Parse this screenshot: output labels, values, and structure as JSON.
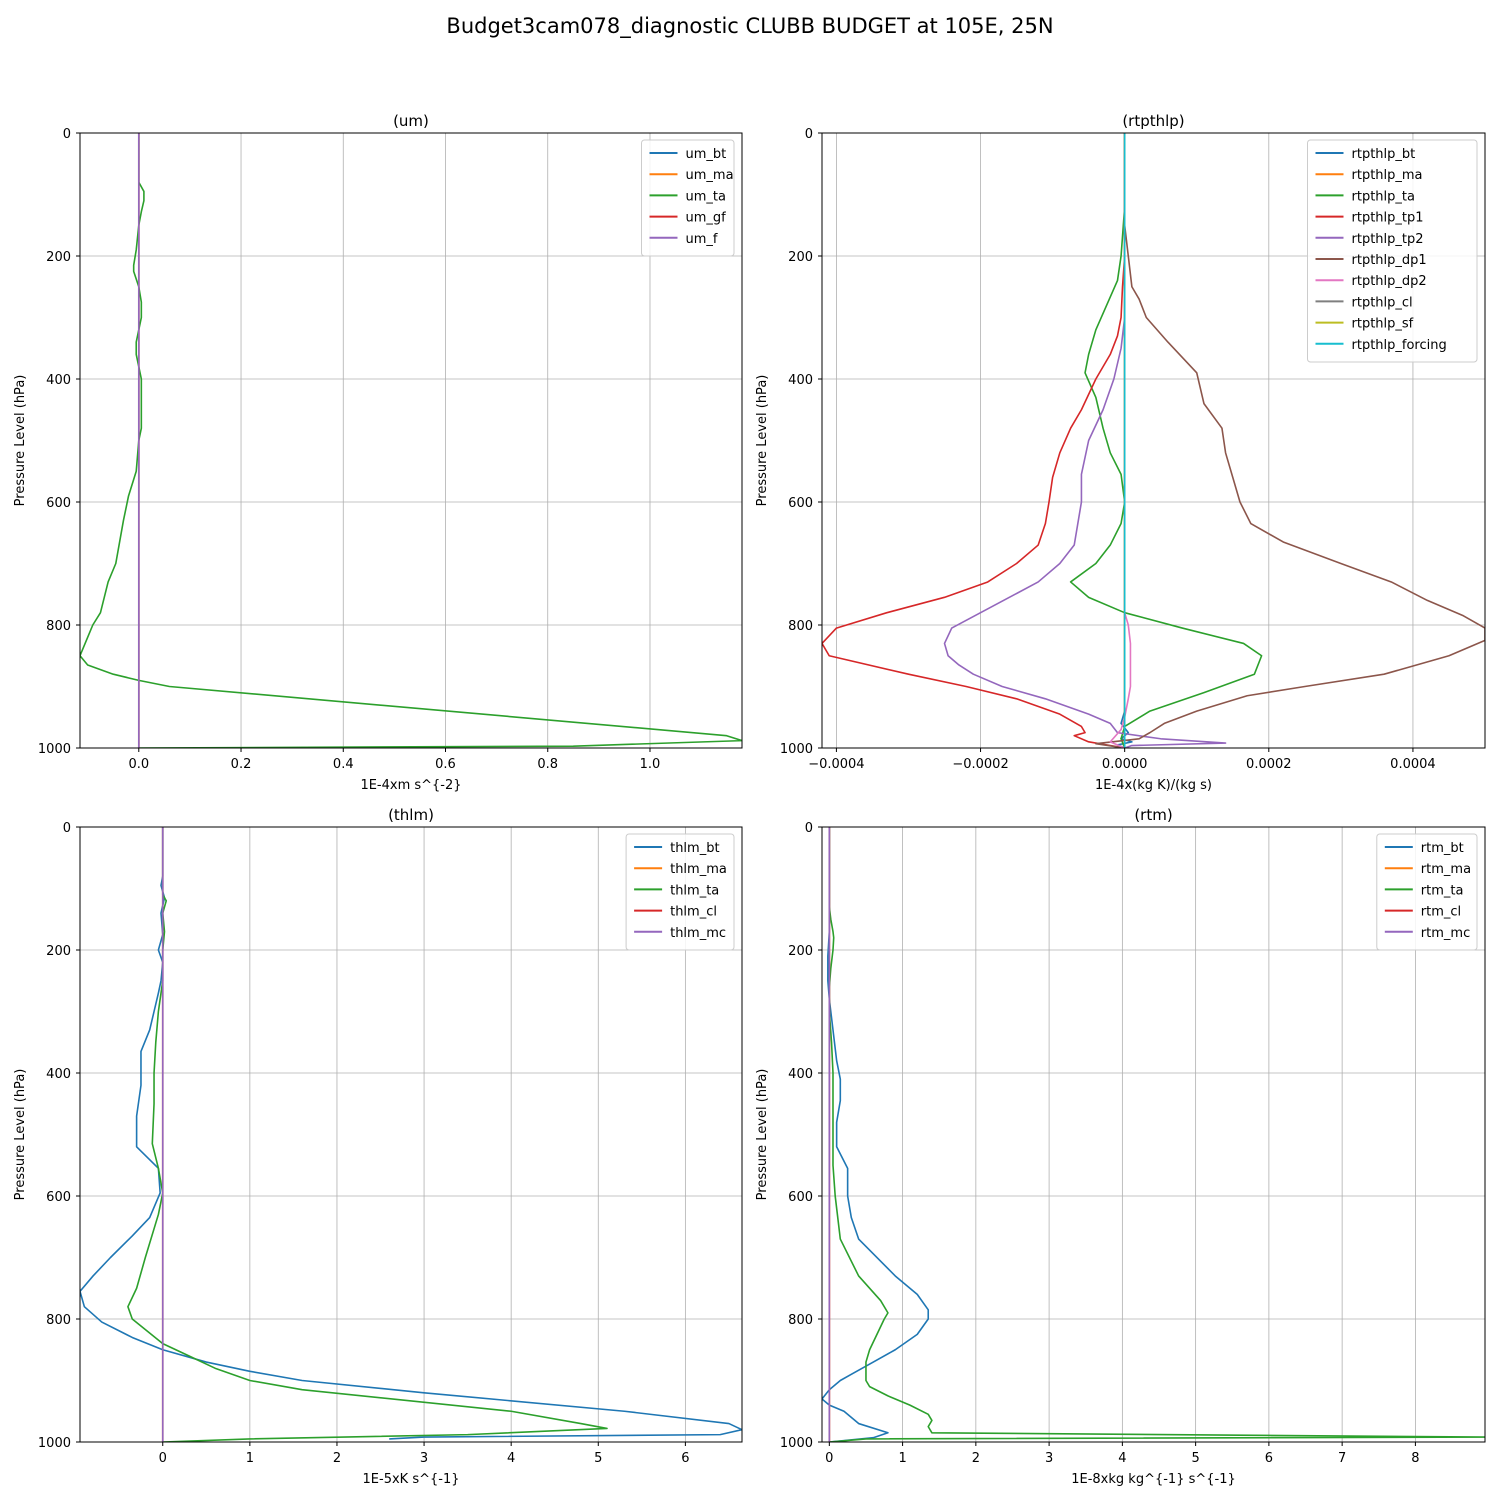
{
  "figure": {
    "title": "Budget3cam078_diagnostic CLUBB BUDGET at 105E, 25N"
  },
  "chart_data": [
    {
      "type": "line",
      "title": "(um)",
      "xlabel": "1E-4xm s^{-2}",
      "ylabel": "Pressure Level (hPa)",
      "xlim": [
        -0.115,
        1.18
      ],
      "ylim": [
        1000,
        0
      ],
      "xticks": [
        0.0,
        0.2,
        0.4,
        0.6,
        0.8,
        1.0
      ],
      "xtick_labels": [
        "0.0",
        "0.2",
        "0.4",
        "0.6",
        "0.8",
        "1.0"
      ],
      "yticks": [
        0,
        200,
        400,
        600,
        800,
        1000
      ],
      "ytick_labels": [
        "0",
        "200",
        "400",
        "600",
        "800",
        "1000"
      ],
      "grid": true,
      "legend_position": "top-right",
      "series": [
        {
          "name": "um_bt",
          "color": "#1f77b4",
          "y": [
            0,
            1000
          ],
          "x": [
            0,
            0
          ]
        },
        {
          "name": "um_ma",
          "color": "#ff7f0e",
          "y": [
            0,
            1000
          ],
          "x": [
            0,
            0
          ]
        },
        {
          "name": "um_ta",
          "color": "#2ca02c",
          "y": [
            0,
            80,
            95,
            110,
            128,
            150,
            190,
            215,
            225,
            250,
            275,
            300,
            320,
            340,
            360,
            380,
            400,
            420,
            450,
            480,
            500,
            550,
            590,
            630,
            700,
            730,
            780,
            800,
            830,
            850,
            865,
            880,
            890,
            900,
            980,
            988,
            997,
            1000
          ],
          "x": [
            0,
            0,
            0.01,
            0.01,
            0.005,
            0,
            -0.005,
            -0.01,
            -0.01,
            0.0,
            0.005,
            0.005,
            0.0,
            -0.005,
            -0.005,
            0.0,
            0.005,
            0.005,
            0.005,
            0.005,
            0.0,
            -0.005,
            -0.02,
            -0.03,
            -0.045,
            -0.06,
            -0.075,
            -0.09,
            -0.105,
            -0.115,
            -0.1,
            -0.05,
            0.0,
            0.06,
            1.15,
            1.18,
            0.85,
            0.0
          ]
        },
        {
          "name": "um_gf",
          "color": "#d62728",
          "y": [
            0,
            1000
          ],
          "x": [
            0,
            0
          ]
        },
        {
          "name": "um_f",
          "color": "#9467bd",
          "y": [
            0,
            1000
          ],
          "x": [
            0,
            0
          ]
        }
      ]
    },
    {
      "type": "line",
      "title": "(rtpthlp)",
      "xlabel": "1E-4x(kg K)/(kg s)",
      "ylabel": "Pressure Level (hPa)",
      "xlim": [
        -0.00042,
        0.0005
      ],
      "ylim": [
        1000,
        0
      ],
      "xticks": [
        -0.0004,
        -0.0002,
        0.0,
        0.0002,
        0.0004
      ],
      "xtick_labels": [
        "−0.0004",
        "−0.0002",
        "0.0000",
        "0.0002",
        "0.0004"
      ],
      "yticks": [
        0,
        200,
        400,
        600,
        800,
        1000
      ],
      "ytick_labels": [
        "0",
        "200",
        "400",
        "600",
        "800",
        "1000"
      ],
      "grid": true,
      "legend_position": "top-right",
      "series": [
        {
          "name": "rtpthlp_bt",
          "color": "#1f77b4",
          "y": [
            0,
            940,
            960,
            975,
            985,
            990,
            995,
            1000
          ],
          "x": [
            0,
            0,
            -5e-06,
            5e-06,
            -5e-06,
            1e-05,
            -1e-05,
            0
          ]
        },
        {
          "name": "rtpthlp_ma",
          "color": "#ff7f0e",
          "y": [
            0,
            1000
          ],
          "x": [
            0,
            0
          ]
        },
        {
          "name": "rtpthlp_ta",
          "color": "#2ca02c",
          "y": [
            0,
            120,
            200,
            240,
            280,
            320,
            360,
            390,
            430,
            480,
            520,
            555,
            600,
            635,
            670,
            700,
            730,
            755,
            780,
            805,
            830,
            850,
            880,
            910,
            940,
            965,
            985,
            1000
          ],
          "x": [
            0,
            0,
            -5e-06,
            -1e-05,
            -2.5e-05,
            -4e-05,
            -5e-05,
            -5.5e-05,
            -4e-05,
            -3e-05,
            -2e-05,
            -5e-06,
            0.0,
            -5e-06,
            -2e-05,
            -4e-05,
            -7.5e-05,
            -5e-05,
            0.0,
            8e-05,
            0.000165,
            0.00019,
            0.00018,
            0.00011,
            3.5e-05,
            0.0,
            -5e-06,
            0
          ]
        },
        {
          "name": "rtpthlp_tp1",
          "color": "#d62728",
          "y": [
            0,
            200,
            250,
            300,
            330,
            360,
            400,
            450,
            480,
            520,
            560,
            600,
            635,
            670,
            700,
            730,
            755,
            780,
            805,
            830,
            850,
            880,
            900,
            920,
            945,
            965,
            975,
            980,
            990,
            1000
          ],
          "x": [
            0,
            0,
            -3e-06,
            -5e-06,
            -1e-05,
            -2e-05,
            -4e-05,
            -6e-05,
            -7.5e-05,
            -9e-05,
            -0.0001,
            -0.000105,
            -0.00011,
            -0.00012,
            -0.00015,
            -0.00019,
            -0.00025,
            -0.00033,
            -0.0004,
            -0.00042,
            -0.00041,
            -0.0003,
            -0.00022,
            -0.00015,
            -9e-05,
            -6e-05,
            -5.5e-05,
            -7e-05,
            -5e-05,
            0
          ]
        },
        {
          "name": "rtpthlp_tp2",
          "color": "#9467bd",
          "y": [
            0,
            300,
            350,
            400,
            450,
            500,
            555,
            600,
            635,
            670,
            700,
            730,
            755,
            780,
            805,
            830,
            850,
            865,
            880,
            900,
            920,
            945,
            960,
            975,
            985,
            992,
            996,
            1000
          ],
          "x": [
            0,
            0,
            -5e-06,
            -1.5e-05,
            -3e-05,
            -5e-05,
            -6e-05,
            -6e-05,
            -6.5e-05,
            -7e-05,
            -9e-05,
            -0.00012,
            -0.00016,
            -0.0002,
            -0.00024,
            -0.00025,
            -0.000245,
            -0.00023,
            -0.00021,
            -0.00017,
            -0.00011,
            -5e-05,
            -2e-05,
            -1e-05,
            5e-05,
            0.00014,
            1e-05,
            0
          ]
        },
        {
          "name": "rtpthlp_dp1",
          "color": "#8c564b",
          "y": [
            0,
            150,
            200,
            250,
            270,
            300,
            340,
            390,
            440,
            480,
            520,
            560,
            600,
            635,
            665,
            700,
            730,
            760,
            785,
            805,
            825,
            850,
            880,
            900,
            915,
            940,
            960,
            975,
            985,
            993,
            1000
          ],
          "x": [
            0,
            0,
            5e-06,
            1e-05,
            2e-05,
            3e-05,
            6e-05,
            0.0001,
            0.00011,
            0.000135,
            0.00014,
            0.00015,
            0.00016,
            0.000175,
            0.00022,
            0.0003,
            0.00037,
            0.00042,
            0.00047,
            0.0005,
            0.0005,
            0.00045,
            0.00036,
            0.00025,
            0.00017,
            0.0001,
            5.5e-05,
            3.5e-05,
            2e-05,
            -4e-05,
            0
          ]
        },
        {
          "name": "rtpthlp_dp2",
          "color": "#e377c2",
          "y": [
            0,
            780,
            800,
            830,
            870,
            900,
            920,
            950,
            970,
            990,
            1000
          ],
          "x": [
            0,
            0,
            5e-06,
            8e-06,
            8e-06,
            8e-06,
            5e-06,
            0.0,
            -5e-06,
            -2e-05,
            0
          ]
        },
        {
          "name": "rtpthlp_cl",
          "color": "#7f7f7f",
          "y": [
            0,
            1000
          ],
          "x": [
            0,
            0
          ]
        },
        {
          "name": "rtpthlp_sf",
          "color": "#bcbd22",
          "y": [
            0,
            1000
          ],
          "x": [
            0,
            0
          ]
        },
        {
          "name": "rtpthlp_forcing",
          "color": "#17becf",
          "y": [
            0,
            1000
          ],
          "x": [
            0,
            0
          ]
        }
      ]
    },
    {
      "type": "line",
      "title": "(thlm)",
      "xlabel": "1E-5xK s^{-1}",
      "ylabel": "Pressure Level (hPa)",
      "xlim": [
        -0.95,
        6.65
      ],
      "ylim": [
        1000,
        0
      ],
      "xticks": [
        0,
        1,
        2,
        3,
        4,
        5,
        6
      ],
      "xtick_labels": [
        "0",
        "1",
        "2",
        "3",
        "4",
        "5",
        "6"
      ],
      "yticks": [
        0,
        200,
        400,
        600,
        800,
        1000
      ],
      "ytick_labels": [
        "0",
        "200",
        "400",
        "600",
        "800",
        "1000"
      ],
      "grid": true,
      "legend_position": "top-right",
      "series": [
        {
          "name": "thlm_bt",
          "color": "#1f77b4",
          "y": [
            0,
            80,
            95,
            115,
            140,
            175,
            200,
            220,
            250,
            270,
            300,
            330,
            365,
            390,
            420,
            470,
            520,
            555,
            595,
            635,
            665,
            700,
            730,
            755,
            780,
            805,
            830,
            850,
            870,
            885,
            900,
            920,
            950,
            970,
            980,
            988,
            992,
            995
          ],
          "x": [
            0,
            0,
            -0.02,
            0.02,
            -0.02,
            0.0,
            -0.05,
            0.0,
            -0.02,
            -0.05,
            -0.1,
            -0.15,
            -0.25,
            -0.25,
            -0.25,
            -0.3,
            -0.3,
            -0.05,
            -0.03,
            -0.15,
            -0.35,
            -0.6,
            -0.8,
            -0.95,
            -0.9,
            -0.7,
            -0.35,
            0.0,
            0.5,
            1.0,
            1.6,
            3.0,
            5.3,
            6.5,
            6.65,
            6.4,
            3.0,
            2.6
          ]
        },
        {
          "name": "thlm_ma",
          "color": "#ff7f0e",
          "y": [
            0,
            1000
          ],
          "x": [
            0,
            0
          ]
        },
        {
          "name": "thlm_ta",
          "color": "#2ca02c",
          "y": [
            0,
            110,
            120,
            140,
            170,
            200,
            250,
            300,
            350,
            400,
            450,
            515,
            555,
            595,
            630,
            700,
            750,
            780,
            800,
            840,
            860,
            880,
            900,
            915,
            950,
            970,
            978,
            988,
            995,
            1000
          ],
          "x": [
            0,
            0,
            0.04,
            0.0,
            0.02,
            0.0,
            0.0,
            -0.05,
            -0.08,
            -0.1,
            -0.1,
            -0.12,
            -0.05,
            0.0,
            -0.05,
            -0.2,
            -0.3,
            -0.4,
            -0.35,
            0.0,
            0.3,
            0.6,
            1.0,
            1.6,
            4.0,
            4.8,
            5.1,
            3.5,
            1.0,
            0.0
          ]
        },
        {
          "name": "thlm_cl",
          "color": "#d62728",
          "y": [
            0,
            1000
          ],
          "x": [
            0,
            0
          ]
        },
        {
          "name": "thlm_mc",
          "color": "#9467bd",
          "y": [
            0,
            1000
          ],
          "x": [
            0,
            0
          ]
        }
      ]
    },
    {
      "type": "line",
      "title": "(rtm)",
      "xlabel": "1E-8xkg kg^{-1} s^{-1}",
      "ylabel": "Pressure Level (hPa)",
      "xlim": [
        -0.1,
        8.95
      ],
      "ylim": [
        1000,
        0
      ],
      "xticks": [
        0,
        1,
        2,
        3,
        4,
        5,
        6,
        7,
        8
      ],
      "xtick_labels": [
        "0",
        "1",
        "2",
        "3",
        "4",
        "5",
        "6",
        "7",
        "8"
      ],
      "yticks": [
        0,
        200,
        400,
        600,
        800,
        1000
      ],
      "ytick_labels": [
        "0",
        "200",
        "400",
        "600",
        "800",
        "1000"
      ],
      "grid": true,
      "legend_position": "top-right",
      "series": [
        {
          "name": "rtm_bt",
          "color": "#1f77b4",
          "y": [
            0,
            170,
            210,
            250,
            280,
            330,
            380,
            410,
            445,
            480,
            520,
            555,
            600,
            635,
            670,
            730,
            760,
            785,
            800,
            825,
            850,
            870,
            890,
            900,
            915,
            930,
            940,
            950,
            970,
            985,
            993,
            1000
          ],
          "x": [
            0,
            0,
            -0.02,
            -0.02,
            0.0,
            0.05,
            0.1,
            0.15,
            0.15,
            0.1,
            0.1,
            0.25,
            0.25,
            0.3,
            0.4,
            0.9,
            1.2,
            1.35,
            1.35,
            1.2,
            0.9,
            0.6,
            0.3,
            0.15,
            0.0,
            -0.1,
            0.0,
            0.2,
            0.4,
            0.8,
            0.6,
            0.0
          ]
        },
        {
          "name": "rtm_ma",
          "color": "#ff7f0e",
          "y": [
            0,
            1000
          ],
          "x": [
            0,
            0
          ]
        },
        {
          "name": "rtm_ta",
          "color": "#2ca02c",
          "y": [
            0,
            130,
            150,
            170,
            180,
            200,
            230,
            260,
            300,
            350,
            400,
            450,
            500,
            550,
            600,
            640,
            670,
            730,
            770,
            790,
            800,
            850,
            870,
            900,
            910,
            925,
            940,
            955,
            965,
            975,
            985,
            992,
            995,
            1000
          ],
          "x": [
            0,
            0,
            0.02,
            0.05,
            0.06,
            0.05,
            0.02,
            0.0,
            0.0,
            0.03,
            0.05,
            0.05,
            0.05,
            0.05,
            0.08,
            0.12,
            0.15,
            0.4,
            0.7,
            0.8,
            0.75,
            0.55,
            0.5,
            0.5,
            0.55,
            0.8,
            1.1,
            1.35,
            1.4,
            1.35,
            1.4,
            8.95,
            0.5,
            0.0
          ]
        },
        {
          "name": "rtm_cl",
          "color": "#d62728",
          "y": [
            0,
            1000
          ],
          "x": [
            0,
            0
          ]
        },
        {
          "name": "rtm_mc",
          "color": "#9467bd",
          "y": [
            0,
            1000
          ],
          "x": [
            0,
            0
          ]
        }
      ]
    }
  ]
}
